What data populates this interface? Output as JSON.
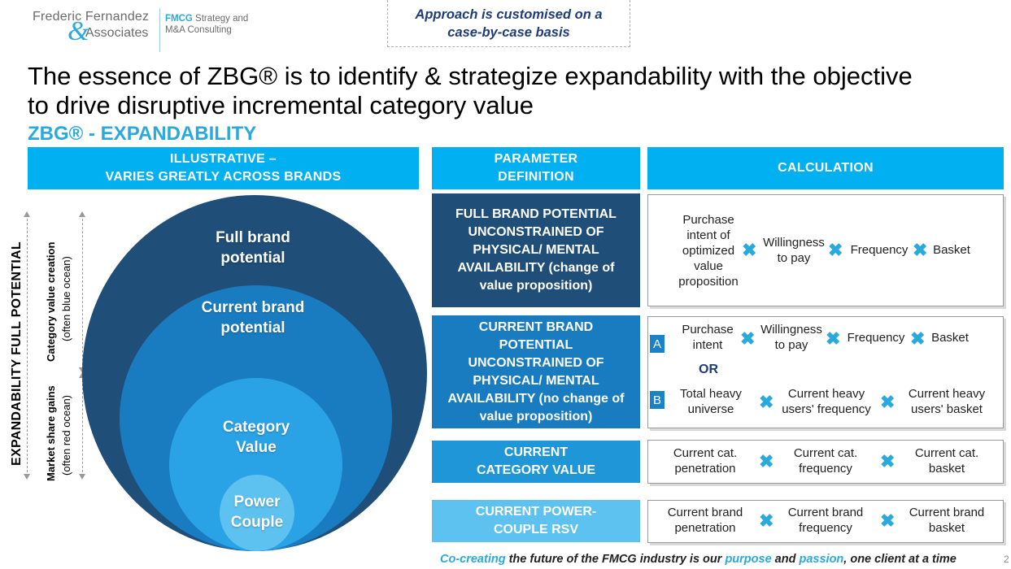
{
  "logo": {
    "line1": "Frederic Fernandez",
    "amp": "&",
    "line2": "Associates",
    "tag_bold": "FMCG",
    "tag_rest": " Strategy and",
    "tag_line2": "M&A Consulting"
  },
  "note": {
    "line1": "Approach is customised on a",
    "line2": "case-by-case basis"
  },
  "title": {
    "line1": "The essence of ZBG® is to identify & strategize expandability with the objective",
    "line2": "to drive disruptive incremental category value"
  },
  "subtitle": "ZBG® - EXPANDABILITY",
  "headers": {
    "illustrative_l1": "ILLUSTRATIVE –",
    "illustrative_l2": "VARIES GREATLY ACROSS BRANDS",
    "param_l1": "PARAMETER",
    "param_l2": "DEFINITION",
    "calc": "CALCULATION"
  },
  "diagram": {
    "axis_main": "EXPANDABILITY FULL POTENTIAL",
    "cat_creation_l1": "Category value creation",
    "cat_creation_l2": "(often blue ocean)",
    "share_gains_l1": "Market share gains",
    "share_gains_l2": "(often red ocean)",
    "circles": [
      {
        "l1": "Full brand",
        "l2": "potential"
      },
      {
        "l1": "Current brand",
        "l2": "potential"
      },
      {
        "l1": "Category",
        "l2": "Value"
      },
      {
        "l1": "Power",
        "l2": "Couple"
      }
    ]
  },
  "rows": [
    {
      "param": [
        "FULL BRAND POTENTIAL",
        "UNCONSTRAINED OF",
        "PHYSICAL/ MENTAL",
        "AVAILABILITY (change of",
        "value proposition)"
      ],
      "terms": [
        [
          "Purchase",
          "intent of",
          "optimized",
          "value",
          "proposition"
        ],
        [
          "Willingness",
          "to pay"
        ],
        [
          "Frequency"
        ],
        [
          "Basket"
        ]
      ]
    },
    {
      "param": [
        "CURRENT BRAND",
        "POTENTIAL",
        "UNCONSTRAINED OF",
        "PHYSICAL/ MENTAL",
        "AVAILABILITY (no change of",
        "value proposition)"
      ],
      "badge_a": "A",
      "badge_b": "B",
      "or": "OR",
      "terms_a": [
        [
          "Purchase",
          "intent"
        ],
        [
          "Willingness",
          "to pay"
        ],
        [
          "Frequency"
        ],
        [
          "Basket"
        ]
      ],
      "terms_b": [
        [
          "Total heavy",
          "universe"
        ],
        [
          "Current heavy",
          "users' frequency"
        ],
        [
          "Current heavy",
          "users' basket"
        ]
      ]
    },
    {
      "param": [
        "CURRENT",
        "CATEGORY VALUE"
      ],
      "terms": [
        [
          "Current cat.",
          "penetration"
        ],
        [
          "Current cat.",
          "frequency"
        ],
        [
          "Current cat.",
          "basket"
        ]
      ]
    },
    {
      "param": [
        "CURRENT POWER-",
        "COUPLE RSV"
      ],
      "terms": [
        [
          "Current brand",
          "penetration"
        ],
        [
          "Current brand",
          "frequency"
        ],
        [
          "Current brand",
          "basket"
        ]
      ]
    }
  ],
  "footer": {
    "p1": "Co-creating",
    "p2": " the future of the FMCG industry is our ",
    "p3": "purpose",
    "p4": " and ",
    "p5": "passion",
    "p6": ", one client at a time",
    "page": "2"
  },
  "colors": {
    "accent": "#00b0f0",
    "dark_navy": "#1f4e79",
    "mid_blue": "#1a82c8",
    "light_blue": "#5dc2f0",
    "multiply_icon": "#2aa9dc"
  }
}
